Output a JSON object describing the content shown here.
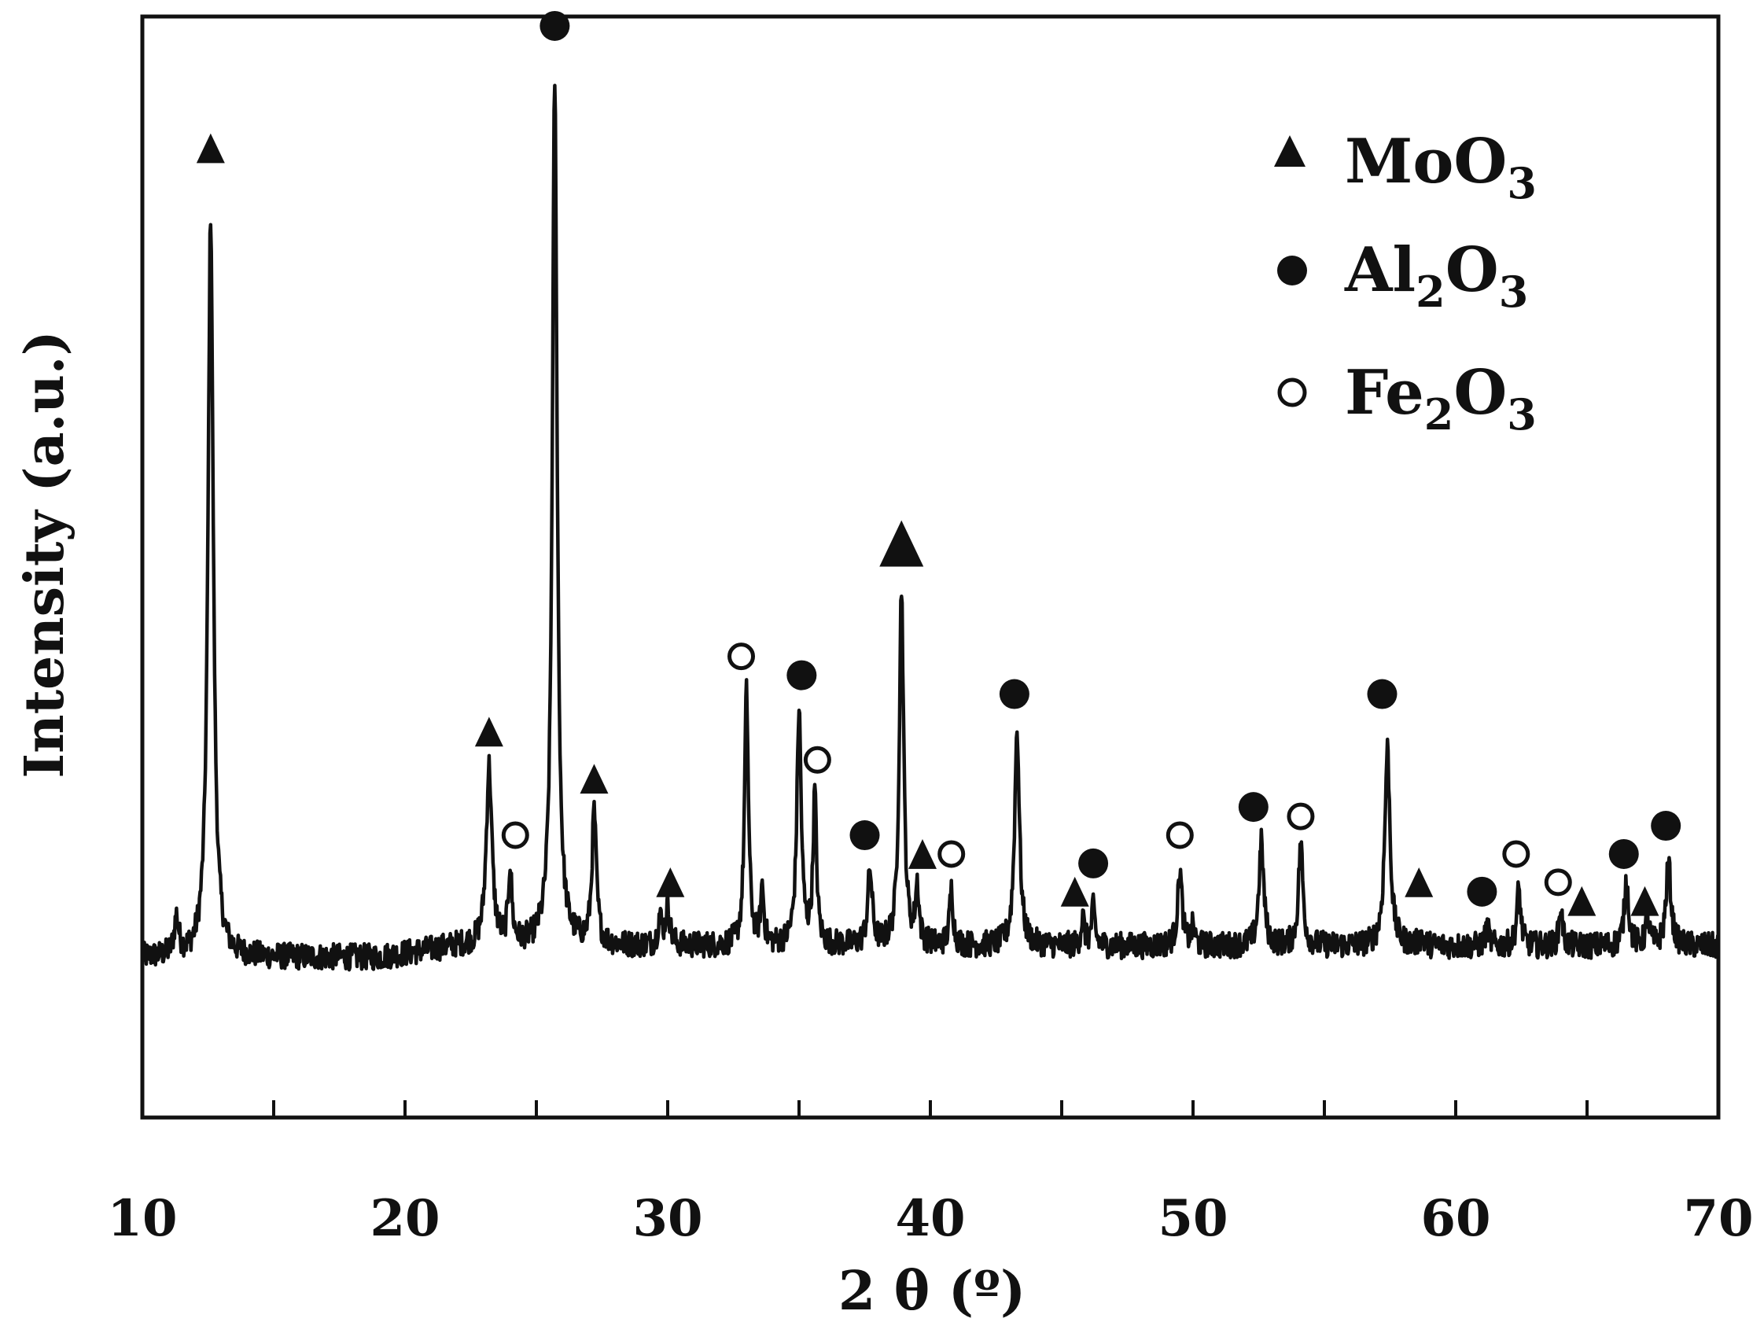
{
  "chart_data": {
    "type": "line",
    "xlabel": "2 θ (º)",
    "ylabel": "Intensity (a.u.)",
    "xlim": [
      10,
      70
    ],
    "ylim": [
      -0.17,
      1.0
    ],
    "x_ticks": [
      10,
      20,
      30,
      40,
      50,
      60,
      70
    ],
    "x_tick_labels": [
      "10",
      "20",
      "30",
      "40",
      "50",
      "60",
      "70"
    ],
    "y_ticks_shown": false,
    "grid": false,
    "legend_position": "top-right",
    "legend": [
      {
        "marker": "filled-triangle",
        "label_main": "MoO",
        "label_sub": "3",
        "label": "MoO3"
      },
      {
        "marker": "filled-circle",
        "label_main": "Al",
        "label_sub": "2",
        "label_main2": "O",
        "label_sub2": "3",
        "label": "Al2O3"
      },
      {
        "marker": "open-circle",
        "label_main": "Fe",
        "label_sub": "2",
        "label_main2": "O",
        "label_sub2": "3",
        "label": "Fe2O3"
      }
    ],
    "series": [
      {
        "color": "#111111",
        "baseline": 0.0,
        "peaks": [
          {
            "x": 11.3,
            "h": 0.04,
            "w": 0.1
          },
          {
            "x": 12.6,
            "h": 0.79,
            "w": 0.12
          },
          {
            "x": 23.2,
            "h": 0.19,
            "w": 0.13
          },
          {
            "x": 24.0,
            "h": 0.08,
            "w": 0.08
          },
          {
            "x": 25.7,
            "h": 0.92,
            "w": 0.11
          },
          {
            "x": 27.2,
            "h": 0.14,
            "w": 0.1
          },
          {
            "x": 29.7,
            "h": 0.03,
            "w": 0.08
          },
          {
            "x": 30.0,
            "h": 0.04,
            "w": 0.1
          },
          {
            "x": 33.0,
            "h": 0.27,
            "w": 0.09
          },
          {
            "x": 33.6,
            "h": 0.06,
            "w": 0.07
          },
          {
            "x": 35.0,
            "h": 0.25,
            "w": 0.1
          },
          {
            "x": 35.6,
            "h": 0.16,
            "w": 0.08
          },
          {
            "x": 37.7,
            "h": 0.08,
            "w": 0.1
          },
          {
            "x": 38.9,
            "h": 0.38,
            "w": 0.1
          },
          {
            "x": 39.5,
            "h": 0.06,
            "w": 0.08
          },
          {
            "x": 40.8,
            "h": 0.06,
            "w": 0.08
          },
          {
            "x": 43.3,
            "h": 0.23,
            "w": 0.11
          },
          {
            "x": 45.8,
            "h": 0.03,
            "w": 0.07
          },
          {
            "x": 46.2,
            "h": 0.04,
            "w": 0.08
          },
          {
            "x": 49.5,
            "h": 0.08,
            "w": 0.1
          },
          {
            "x": 50.0,
            "h": 0.02,
            "w": 0.07
          },
          {
            "x": 52.6,
            "h": 0.11,
            "w": 0.11
          },
          {
            "x": 54.1,
            "h": 0.11,
            "w": 0.1
          },
          {
            "x": 57.4,
            "h": 0.21,
            "w": 0.12
          },
          {
            "x": 58.7,
            "h": 0.01,
            "w": 0.08
          },
          {
            "x": 61.2,
            "h": 0.02,
            "w": 0.08
          },
          {
            "x": 62.4,
            "h": 0.06,
            "w": 0.09
          },
          {
            "x": 64.0,
            "h": 0.04,
            "w": 0.08
          },
          {
            "x": 66.5,
            "h": 0.07,
            "w": 0.1
          },
          {
            "x": 67.3,
            "h": 0.03,
            "w": 0.08
          },
          {
            "x": 68.1,
            "h": 0.09,
            "w": 0.11
          }
        ]
      }
    ],
    "annotations": [
      {
        "marker": "filled-triangle",
        "x": 12.6,
        "y": 0.86
      },
      {
        "marker": "filled-circle",
        "x": 25.7,
        "y": 0.99
      },
      {
        "marker": "filled-triangle",
        "x": 23.2,
        "y": 0.24
      },
      {
        "marker": "open-circle",
        "x": 24.2,
        "y": 0.13
      },
      {
        "marker": "filled-triangle",
        "x": 27.2,
        "y": 0.19
      },
      {
        "marker": "filled-triangle",
        "x": 30.1,
        "y": 0.08
      },
      {
        "marker": "open-circle",
        "x": 32.8,
        "y": 0.32
      },
      {
        "marker": "filled-circle",
        "x": 35.1,
        "y": 0.3
      },
      {
        "marker": "open-circle",
        "x": 35.7,
        "y": 0.21
      },
      {
        "marker": "filled-circle",
        "x": 37.5,
        "y": 0.13
      },
      {
        "marker": "filled-triangle-large",
        "x": 38.9,
        "y": 0.44
      },
      {
        "marker": "filled-triangle",
        "x": 39.7,
        "y": 0.11
      },
      {
        "marker": "open-circle",
        "x": 40.8,
        "y": 0.11
      },
      {
        "marker": "filled-circle",
        "x": 43.2,
        "y": 0.28
      },
      {
        "marker": "filled-triangle",
        "x": 45.5,
        "y": 0.07
      },
      {
        "marker": "filled-circle",
        "x": 46.2,
        "y": 0.1
      },
      {
        "marker": "open-circle",
        "x": 49.5,
        "y": 0.13
      },
      {
        "marker": "filled-circle",
        "x": 52.3,
        "y": 0.16
      },
      {
        "marker": "open-circle",
        "x": 54.1,
        "y": 0.15
      },
      {
        "marker": "filled-circle",
        "x": 57.2,
        "y": 0.28
      },
      {
        "marker": "filled-triangle",
        "x": 58.6,
        "y": 0.08
      },
      {
        "marker": "filled-circle",
        "x": 61.0,
        "y": 0.07
      },
      {
        "marker": "open-circle",
        "x": 62.3,
        "y": 0.11
      },
      {
        "marker": "open-circle",
        "x": 63.9,
        "y": 0.08
      },
      {
        "marker": "filled-triangle",
        "x": 64.8,
        "y": 0.06
      },
      {
        "marker": "filled-circle",
        "x": 66.4,
        "y": 0.11
      },
      {
        "marker": "filled-triangle",
        "x": 67.2,
        "y": 0.06
      },
      {
        "marker": "filled-circle",
        "x": 68.0,
        "y": 0.14
      }
    ]
  }
}
